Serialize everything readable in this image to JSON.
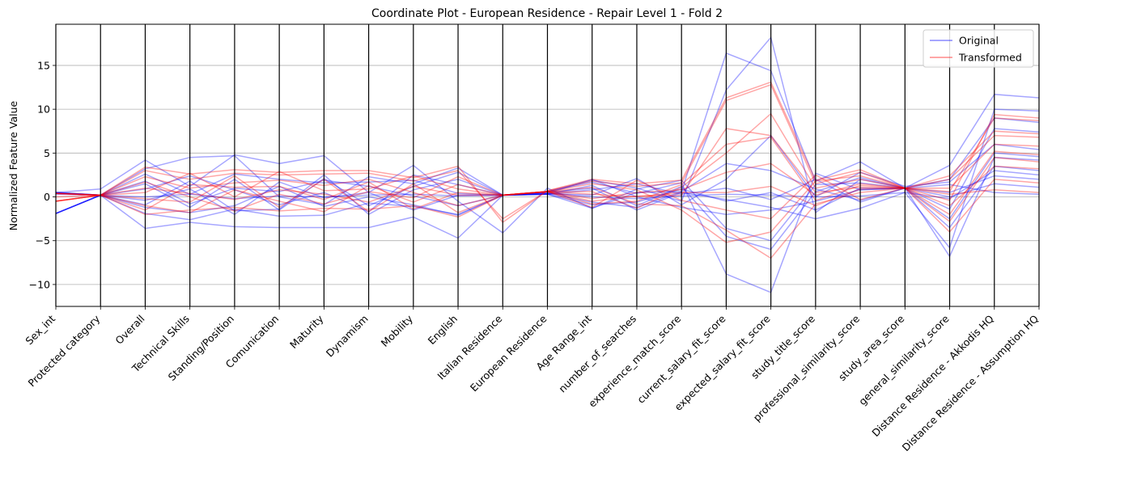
{
  "chart_data": {
    "type": "parallel-coordinates",
    "title": "Coordinate Plot - European Residence - Repair Level 1 - Fold 2",
    "xlabel": "",
    "ylabel": "Normalized Feature Value",
    "ylim": [
      -12.5,
      19.7
    ],
    "yticks": [
      -10,
      -5,
      0,
      5,
      10,
      15
    ],
    "grid": true,
    "legend_position": "top-right",
    "features": [
      "Sex_int",
      "Protected category",
      "Overall",
      "Technical Skills",
      "Standing/Position",
      "Comunication",
      "Maturity",
      "Dynamism",
      "Mobility",
      "English",
      "Italian Residence",
      "European Residence",
      "Age Range_int",
      "number_of_searches",
      "experience_match_score",
      "current_salary_fit_score",
      "expected_salary_fit_score",
      "study_title_score",
      "professional_similarity_score",
      "study_area_score",
      "general_similarity_score",
      "Distance Residence - Akkodis HQ",
      "Distance Residence - Assumption HQ"
    ],
    "series": [
      {
        "name": "Original",
        "color": "#0000ff",
        "lines": [
          [
            0.4,
            0.2,
            0.0,
            0.3,
            -0.2,
            0.1,
            0.0,
            0.2,
            0.3,
            0.1,
            0.2,
            0.4,
            0.0,
            -0.2,
            0.1,
            0.3,
            0.2,
            0.0,
            0.1,
            0.5,
            -0.2,
            3.0,
            2.5
          ],
          [
            -1.9,
            0.2,
            -3.6,
            -2.9,
            -3.4,
            -3.5,
            -3.5,
            -3.5,
            -2.3,
            -4.7,
            0.2,
            0.5,
            1.0,
            -1.5,
            0.5,
            -0.3,
            -1.2,
            -2.5,
            -1.3,
            0.5,
            -5.8,
            10.0,
            9.8
          ],
          [
            0.5,
            0.9,
            4.2,
            1.2,
            4.8,
            3.8,
            4.7,
            0.5,
            3.6,
            -0.5,
            -4.1,
            1.0,
            -1.3,
            0.5,
            0.6,
            16.4,
            14.4,
            1.8,
            4.0,
            1.0,
            3.6,
            11.7,
            11.3
          ],
          [
            0.3,
            0.2,
            1.5,
            -1.2,
            2.0,
            -1.5,
            2.1,
            -1.0,
            1.2,
            2.8,
            0.2,
            0.6,
            1.9,
            1.0,
            -0.5,
            12.2,
            18.2,
            -1.8,
            2.0,
            1.0,
            2.0,
            9.0,
            8.5
          ],
          [
            -1.9,
            0.2,
            -1.9,
            -2.6,
            -1.4,
            -2.2,
            -2.1,
            -0.7,
            -1.1,
            -2.0,
            0.2,
            0.6,
            1.7,
            0.4,
            1.6,
            -8.8,
            -10.9,
            2.7,
            0.8,
            1.0,
            -6.8,
            4.5,
            4.2
          ],
          [
            0.5,
            0.2,
            3.2,
            4.5,
            4.7,
            0.0,
            -0.9,
            2.3,
            1.5,
            3.3,
            0.2,
            0.4,
            0.2,
            2.1,
            -0.9,
            2.0,
            7.0,
            0.0,
            2.8,
            1.2,
            1.7,
            6.0,
            5.4
          ],
          [
            -1.9,
            0.2,
            -0.4,
            0.9,
            -2.0,
            1.7,
            -0.1,
            0.5,
            -1.5,
            0.2,
            0.2,
            0.4,
            -0.6,
            -1.2,
            0.6,
            3.8,
            3.0,
            0.9,
            -0.4,
            1.0,
            -1.4,
            7.8,
            7.4
          ],
          [
            0.5,
            0.2,
            1.8,
            -0.8,
            1.0,
            0.6,
            1.9,
            1.2,
            0.1,
            -1.0,
            0.2,
            0.3,
            -1.3,
            0.9,
            1.9,
            -3.6,
            -5.0,
            1.4,
            1.6,
            1.0,
            0.5,
            2.4,
            2.0
          ],
          [
            -1.9,
            0.2,
            0.9,
            2.4,
            0.8,
            -0.9,
            0.5,
            -1.7,
            2.5,
            1.4,
            0.2,
            0.4,
            2.0,
            0.0,
            -1.2,
            -2.0,
            -1.5,
            -0.5,
            0.8,
            1.0,
            1.4,
            0.5,
            0.3
          ],
          [
            0.5,
            0.2,
            -1.2,
            -1.8,
            -1.0,
            1.2,
            -1.1,
            0.0,
            -0.9,
            -2.1,
            0.2,
            0.3,
            0.8,
            1.5,
            0.3,
            1.0,
            -0.3,
            2.0,
            -0.6,
            1.0,
            -2.5,
            5.0,
            4.6
          ],
          [
            -1.9,
            0.2,
            2.6,
            0.3,
            2.6,
            2.0,
            1.6,
            1.7,
            1.9,
            0.4,
            0.2,
            0.3,
            -0.9,
            -0.6,
            0.9,
            -0.5,
            0.5,
            -1.5,
            1.0,
            1.0,
            0.0,
            1.5,
            1.1
          ],
          [
            0.5,
            0.2,
            -0.9,
            1.8,
            -1.6,
            -1.4,
            2.5,
            -2.0,
            0.8,
            2.0,
            0.2,
            0.3,
            1.3,
            -1.0,
            1.2,
            -4.5,
            -6.0,
            0.6,
            2.2,
            1.0,
            -3.5,
            3.5,
            3.0
          ]
        ]
      },
      {
        "name": "Transformed",
        "color": "#ff0000",
        "lines": [
          [
            0.4,
            0.2,
            3.4,
            2.6,
            3.1,
            2.8,
            3.0,
            3.0,
            2.2,
            3.5,
            -2.9,
            0.7,
            2.0,
            1.5,
            1.9,
            11.3,
            13.1,
            1.9,
            3.1,
            1.0,
            2.4,
            7.5,
            7.2
          ],
          [
            0.4,
            0.2,
            3.0,
            2.0,
            2.7,
            2.5,
            2.6,
            2.7,
            1.8,
            3.0,
            -2.5,
            0.7,
            1.8,
            1.2,
            1.6,
            11.0,
            12.8,
            1.5,
            2.8,
            1.0,
            2.0,
            7.0,
            6.8
          ],
          [
            0.0,
            0.2,
            -2.0,
            -1.5,
            -1.2,
            -1.6,
            -1.3,
            -1.4,
            -1.0,
            -2.3,
            0.2,
            0.6,
            -0.5,
            0.1,
            0.2,
            7.8,
            7.0,
            0.5,
            1.1,
            1.0,
            -2.0,
            5.2,
            4.8
          ],
          [
            -0.5,
            0.2,
            1.0,
            0.4,
            -0.3,
            0.8,
            0.3,
            -0.6,
            1.2,
            0.2,
            0.2,
            0.6,
            1.1,
            -0.8,
            -1.0,
            -3.8,
            -7.0,
            -0.8,
            0.5,
            1.0,
            -4.0,
            2.0,
            1.6
          ],
          [
            0.4,
            0.2,
            -1.0,
            -1.8,
            0.8,
            -0.5,
            -1.7,
            1.3,
            -0.6,
            1.4,
            0.2,
            0.6,
            -0.2,
            0.5,
            0.8,
            2.8,
            3.8,
            0.2,
            1.5,
            1.0,
            0.6,
            9.0,
            8.7
          ],
          [
            -0.5,
            0.2,
            2.3,
            1.0,
            1.6,
            1.9,
            1.3,
            2.0,
            0.5,
            -1.0,
            0.2,
            0.6,
            0.6,
            -1.3,
            1.1,
            5.0,
            9.5,
            1.0,
            2.0,
            1.0,
            1.0,
            6.0,
            5.8
          ],
          [
            0.4,
            0.2,
            0.5,
            2.7,
            0.0,
            2.9,
            0.7,
            0.9,
            2.4,
            0.9,
            0.2,
            0.6,
            -1.2,
            1.9,
            -0.4,
            -1.5,
            -2.5,
            2.5,
            -0.3,
            1.0,
            -1.0,
            3.5,
            3.2
          ],
          [
            -0.5,
            0.2,
            -0.2,
            -0.6,
            2.4,
            -1.2,
            2.0,
            -1.7,
            1.5,
            -1.8,
            0.2,
            0.6,
            0.3,
            0.0,
            0.5,
            0.5,
            1.2,
            -1.0,
            0.9,
            1.0,
            0.3,
            0.8,
            0.5
          ],
          [
            0.4,
            0.2,
            1.7,
            0.0,
            -1.6,
            0.3,
            -0.8,
            0.6,
            -0.1,
            2.3,
            0.2,
            0.6,
            1.5,
            0.8,
            -1.5,
            -5.2,
            -4.0,
            1.8,
            2.4,
            1.0,
            -2.8,
            4.5,
            4.0
          ],
          [
            -0.5,
            0.2,
            -1.5,
            1.4,
            1.1,
            1.2,
            -0.3,
            1.7,
            -1.4,
            0.5,
            0.2,
            0.6,
            -0.8,
            -0.5,
            1.4,
            6.0,
            6.8,
            -0.4,
            1.3,
            1.0,
            -0.4,
            9.4,
            9.0
          ]
        ]
      }
    ]
  }
}
